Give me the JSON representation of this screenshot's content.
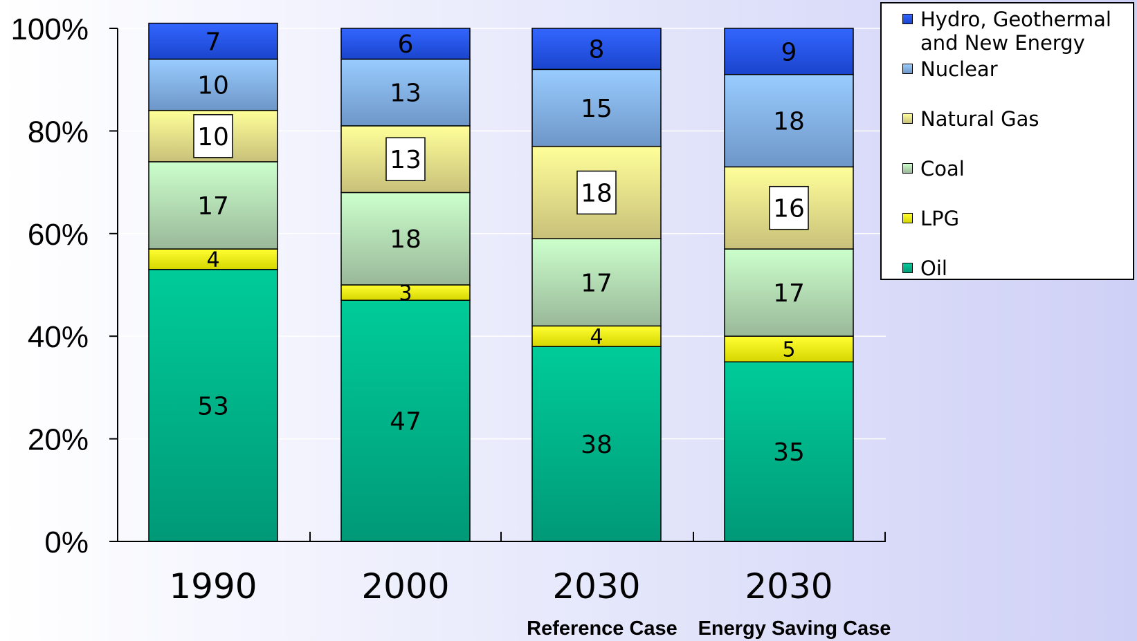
{
  "chart_data": {
    "type": "bar",
    "stacked": true,
    "normalized": true,
    "categories": [
      {
        "label": "1990",
        "sublabel": ""
      },
      {
        "label": "2000",
        "sublabel": ""
      },
      {
        "label": "2030",
        "sublabel": "Reference Case"
      },
      {
        "label": "2030",
        "sublabel": "Energy Saving Case"
      }
    ],
    "series": [
      {
        "name": "Oil",
        "values": [
          53,
          47,
          38,
          35
        ],
        "colors": [
          "#00cc99",
          "#009977"
        ],
        "boxed_labels": false
      },
      {
        "name": "LPG",
        "values": [
          4,
          3,
          4,
          5
        ],
        "colors": [
          "#ffff33",
          "#d6d600"
        ],
        "boxed_labels": false
      },
      {
        "name": "Coal",
        "values": [
          17,
          18,
          17,
          17
        ],
        "colors": [
          "#ccffcc",
          "#99b899"
        ],
        "boxed_labels": false
      },
      {
        "name": "Natural Gas",
        "values": [
          10,
          13,
          18,
          16
        ],
        "colors": [
          "#ffff99",
          "#c8c07a"
        ],
        "boxed_labels": true
      },
      {
        "name": "Nuclear",
        "values": [
          10,
          13,
          15,
          18
        ],
        "colors": [
          "#99ccff",
          "#6e96c8"
        ],
        "boxed_labels": false
      },
      {
        "name": "Hydro, Geothermal and New Energy",
        "values": [
          7,
          6,
          8,
          9
        ],
        "colors": [
          "#3366ff",
          "#1a44cc"
        ],
        "boxed_labels": false
      }
    ],
    "legend_order": [
      "Hydro, Geothermal and New Energy",
      "Nuclear",
      "Natural Gas",
      "Coal",
      "LPG",
      "Oil"
    ],
    "y_ticks": [
      "0%",
      "20%",
      "40%",
      "60%",
      "80%",
      "100%"
    ],
    "ylim": [
      0,
      100
    ],
    "legend_position": "top-right",
    "grid": true,
    "title": "",
    "xlabel": "",
    "ylabel": ""
  }
}
